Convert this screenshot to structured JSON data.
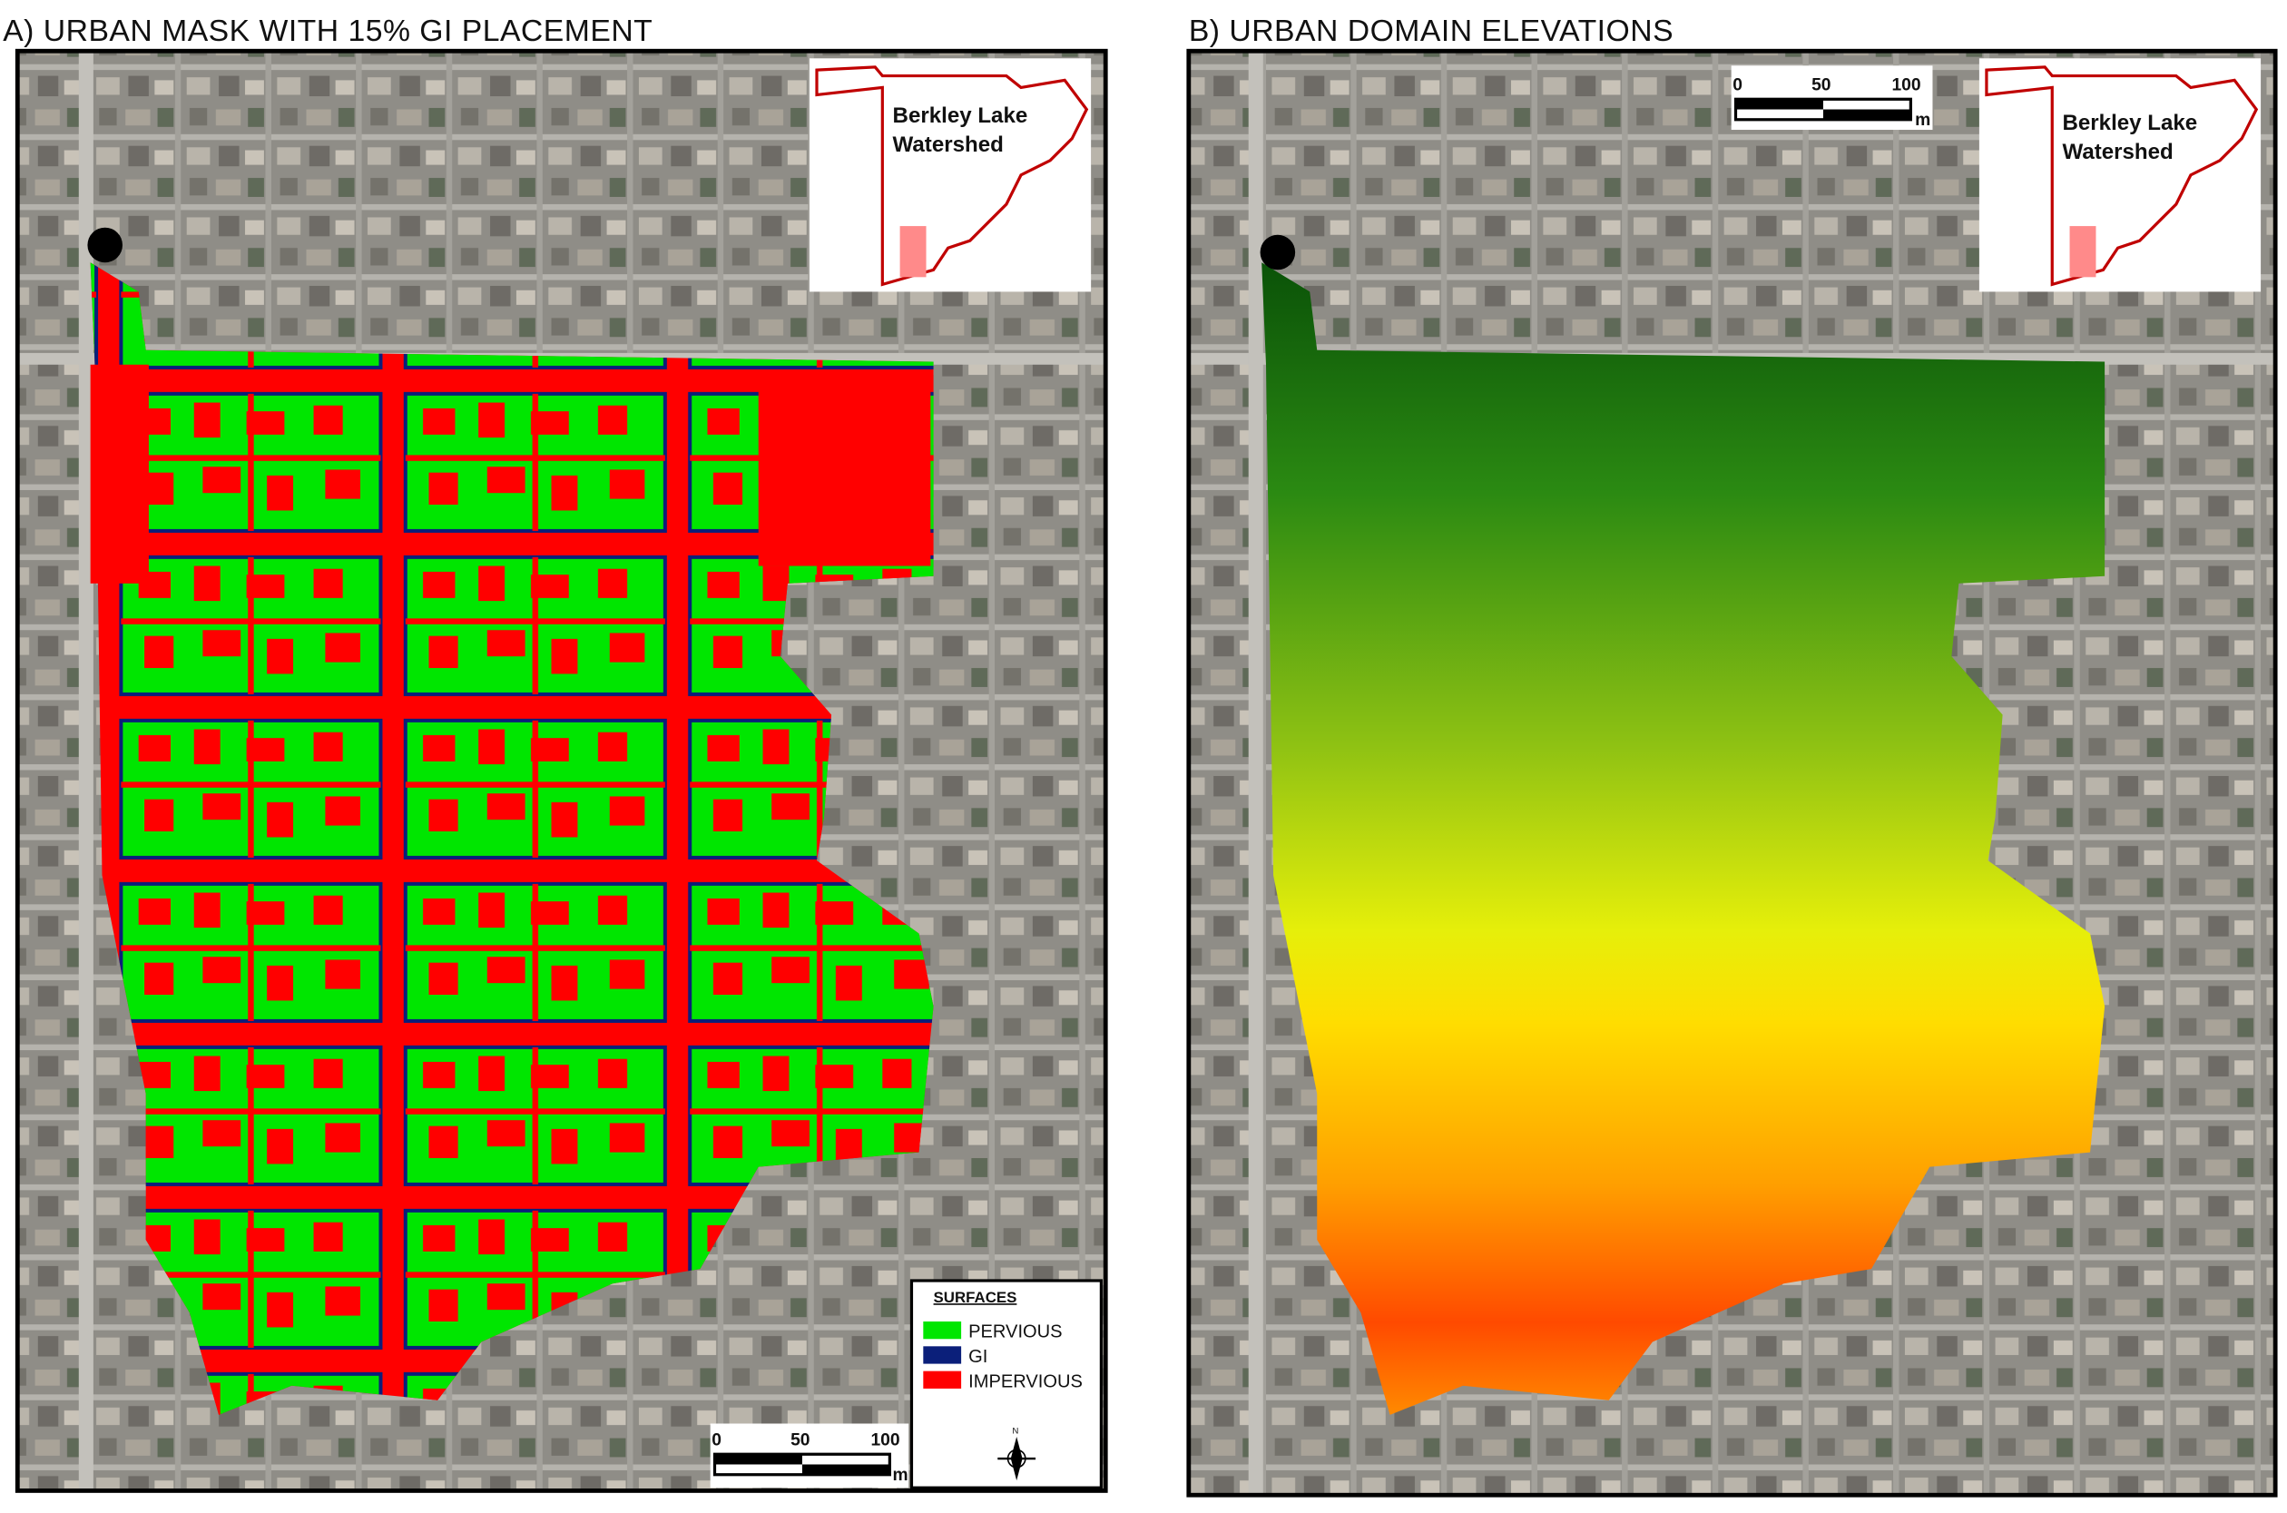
{
  "panels": [
    {
      "title": "A) URBAN MASK WITH 15% GI PLACEMENT",
      "inset": {
        "lines": [
          "Berkley Lake",
          "Watershed"
        ]
      },
      "scale_bar": {
        "labels": [
          "0",
          "50",
          "100"
        ],
        "unit": "m"
      },
      "legend": {
        "title": "SURFACES",
        "items": [
          {
            "label": "PERVIOUS",
            "color": "#00e600"
          },
          {
            "label": "GI",
            "color": "#0b1f7a"
          },
          {
            "label": "IMPERVIOUS",
            "color": "#ff0000"
          }
        ]
      },
      "north_arrow": "N"
    },
    {
      "title": "B) URBAN DOMAIN ELEVATIONS",
      "inset": {
        "lines": [
          "Berkley Lake",
          "Watershed"
        ]
      },
      "scale_bar": {
        "labels": [
          "0",
          "50",
          "100"
        ],
        "unit": "m"
      }
    }
  ]
}
